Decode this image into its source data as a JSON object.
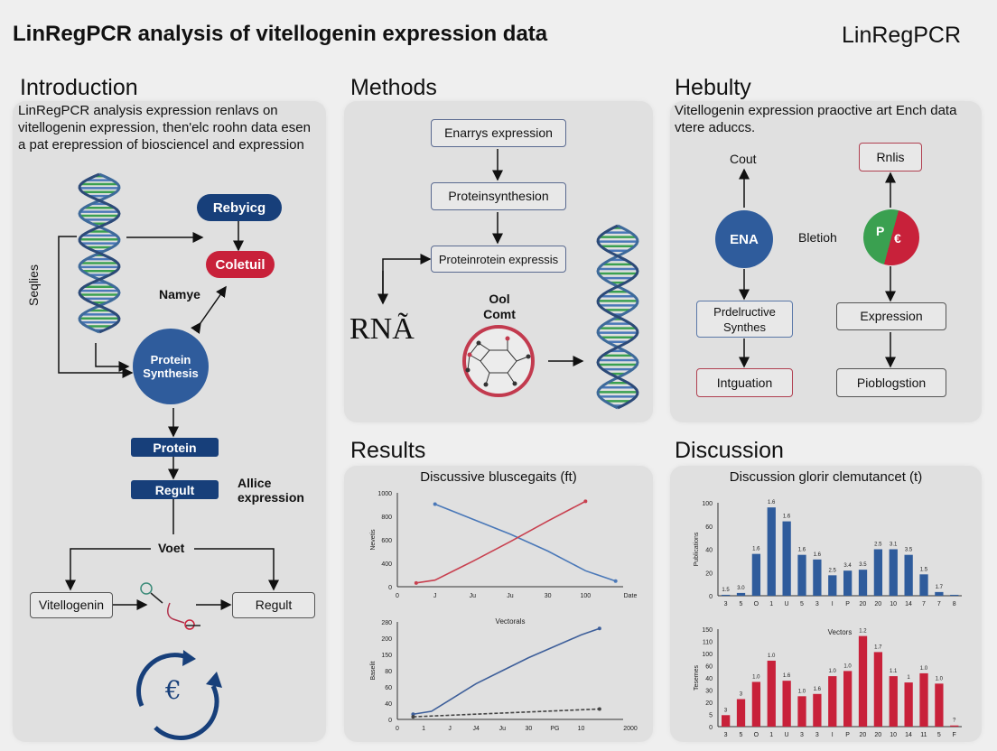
{
  "header": {
    "title": "LinRegPCR analysis of vitellogenin expression data",
    "brand": "LinRegPCR"
  },
  "intro": {
    "heading": "Introduction",
    "text": "LinRegPCR analysis expression renlavs on vitellogenin expression, then'elc roohn data esen a pat erepression of biosciencel and expression",
    "rebyicg": "Rebyicg",
    "coletuil": "Coletuil",
    "namye": "Namye",
    "seqlies": "Seqlies",
    "protein_synthesis": "Protein Synthesis",
    "protein": "Protein",
    "regult_box": "Regult",
    "allice": "Allice expression",
    "voet": "Voet",
    "vitellogenin": "Vitellogenin",
    "regult": "Regult",
    "cycle_symbol": "€"
  },
  "methods": {
    "heading": "Methods",
    "box1": "Enarrys expression",
    "box2": "Proteinsynthesion",
    "box3": "Proteinrotein expressis",
    "rna": "RNÃ",
    "ool": "Ool Comt"
  },
  "hebulty": {
    "heading": "Hebulty",
    "text": "Vitellogenin expression praoctive art Ench data vtere aduccs.",
    "cout": "Cout",
    "ena": "ENA",
    "bletioh": "Bletioh",
    "pie_left": "P",
    "pie_right": "€",
    "rnlis": "Rnlis",
    "predeluctive": "Prdelructive Synthes",
    "intguation": "Intguation",
    "expression": "Expression",
    "pioblogstion": "Pioblogstion"
  },
  "results": {
    "heading": "Results"
  },
  "discussion": {
    "heading": "Discussion"
  },
  "colors": {
    "navy": "#173f7a",
    "blue": "#2f5c9c",
    "red": "#c8213a",
    "green": "#3aa050",
    "line_blue": "#4a78b8",
    "line_red": "#c8404f"
  },
  "chart_data": [
    {
      "type": "line",
      "title": "Discussive bluscegaits (ft)",
      "ylabel": "Nevetis",
      "xlabel": "Date",
      "x_ticks": [
        "0",
        "J",
        "Ju",
        "Ju",
        "30",
        "100"
      ],
      "y_ticks": [
        "0",
        "400",
        "600",
        "800",
        "1000"
      ],
      "ylim": [
        0,
        1000
      ],
      "xlim": [
        0,
        6
      ],
      "series": [
        {
          "color": "#4a78b8",
          "x": [
            1,
            2,
            3,
            4,
            5,
            5.8
          ],
          "y": [
            880,
            720,
            560,
            380,
            170,
            60
          ]
        },
        {
          "color": "#c8404f",
          "x": [
            0.5,
            1,
            2,
            3,
            4,
            5
          ],
          "y": [
            40,
            70,
            270,
            480,
            700,
            910
          ]
        }
      ]
    },
    {
      "type": "line",
      "title": "Vectorals",
      "ylabel": "Baselit",
      "xlabel": "2000",
      "x_ticks": [
        "0",
        "1",
        "J",
        "J4",
        "Ju",
        "30",
        "PG",
        "10"
      ],
      "y_ticks": [
        "0",
        "40",
        "60",
        "80",
        "150",
        "200",
        "280"
      ],
      "ylim": [
        0,
        300
      ],
      "xlim": [
        0,
        8.6
      ],
      "series": [
        {
          "color": "#3e5f9a",
          "x": [
            0.6,
            1.3,
            2,
            3,
            4,
            5,
            6,
            7,
            7.7
          ],
          "y": [
            16,
            25,
            60,
            110,
            150,
            190,
            225,
            260,
            280
          ]
        },
        {
          "color": "#444444",
          "dashed": true,
          "x": [
            0.6,
            7.7
          ],
          "y": [
            8,
            32
          ]
        }
      ]
    },
    {
      "type": "bar",
      "title": "Discussion glorir clemutancet (t)",
      "ylabel": "Publications",
      "color": "#2f5c9c",
      "categories": [
        "3",
        "5",
        "O",
        "1",
        "U",
        "5",
        "3",
        "I",
        "P",
        "20",
        "20",
        "10",
        "14",
        "7",
        "7",
        "8"
      ],
      "values": [
        1,
        3,
        45,
        95,
        80,
        44,
        39,
        22,
        27,
        28,
        50,
        50,
        44,
        23,
        4,
        1
      ],
      "labels": [
        "1.5",
        "3.0",
        "1.6",
        "1.6",
        "1.6",
        "1.6",
        "1.6",
        "2.5",
        "3.4",
        "3.5",
        "2.5",
        "3.1",
        "3.5",
        "1.5",
        "1.7",
        ""
      ],
      "y_ticks": [
        "0",
        "20",
        "40",
        "60",
        "100"
      ],
      "ylim": [
        0,
        100
      ]
    },
    {
      "type": "bar",
      "title": "Vectors",
      "ylabel": "Tesemes",
      "color": "#c8213a",
      "categories": [
        "3",
        "5",
        "O",
        "1",
        "U",
        "3",
        "3",
        "I",
        "P",
        "20",
        "20",
        "10",
        "14",
        "11",
        "5",
        "F"
      ],
      "values": [
        20,
        48,
        78,
        115,
        80,
        53,
        57,
        88,
        97,
        158,
        130,
        88,
        77,
        93,
        75,
        2
      ],
      "labels": [
        "3",
        "3",
        "1.0",
        "1.0",
        "1.6",
        "1.0",
        "1.6",
        "1.0",
        "1.0",
        "1.2",
        "1.7",
        "1.1",
        "1",
        "1.0",
        "1.0",
        "?"
      ],
      "y_ticks": [
        "0",
        "5",
        "20",
        "30",
        "40",
        "60",
        "100",
        "110",
        "150"
      ],
      "ylim": [
        0,
        170
      ]
    }
  ]
}
